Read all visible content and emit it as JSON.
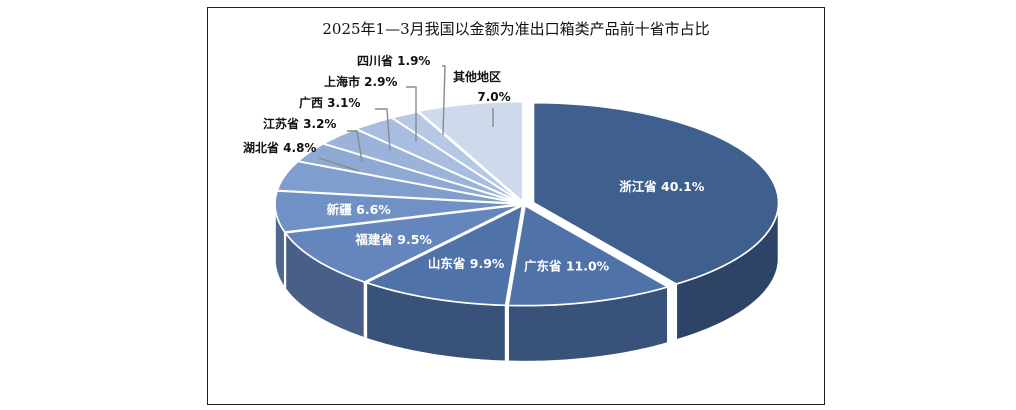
{
  "chart_data": {
    "type": "pie",
    "title": "2025年1—3月我国以金额为准出口箱类产品前十省市占比",
    "style": "3d-exploded-pie",
    "start": "12-o'clock",
    "direction": "clockwise",
    "slices": [
      {
        "name": "浙江省",
        "value": 40.1,
        "label": "浙江省 40.1%",
        "name_line": "",
        "value_line": "",
        "color": "#3f5f8f"
      },
      {
        "name": "广东省",
        "value": 11.0,
        "label": "广东省 11.0%",
        "name_line": "",
        "value_line": "",
        "color": "#4f72a8"
      },
      {
        "name": "山东省",
        "value": 9.9,
        "label": "山东省 9.9%",
        "name_line": "",
        "value_line": "",
        "color": "#4f72a8"
      },
      {
        "name": "福建省",
        "value": 9.5,
        "label": "福建省 9.5%",
        "name_line": "",
        "value_line": "",
        "color": "#6486bc"
      },
      {
        "name": "新疆",
        "value": 6.6,
        "label": "新疆 6.6%",
        "name_line": "",
        "value_line": "",
        "color": "#6f91c6"
      },
      {
        "name": "湖北省",
        "value": 4.8,
        "label": "湖北省 4.8%",
        "name_line": "",
        "value_line": "",
        "color": "#7f9dcd"
      },
      {
        "name": "江苏省",
        "value": 3.2,
        "label": "江苏省 3.2%",
        "name_line": "",
        "value_line": "",
        "color": "#8ea9d4"
      },
      {
        "name": "广西",
        "value": 3.1,
        "label": "广西 3.1%",
        "name_line": "",
        "value_line": "",
        "color": "#9bb3da"
      },
      {
        "name": "上海市",
        "value": 2.9,
        "label": "上海市 2.9%",
        "name_line": "",
        "value_line": "",
        "color": "#a9bde0"
      },
      {
        "name": "四川省",
        "value": 1.9,
        "label": "四川省 1.9%",
        "name_line": "",
        "value_line": "",
        "color": "#b6c8e5"
      },
      {
        "name": "其他地区",
        "value": 7.0,
        "label": "",
        "name_line": "其他地区",
        "value_line": "7.0%",
        "color": "#cfd9ec"
      }
    ]
  }
}
